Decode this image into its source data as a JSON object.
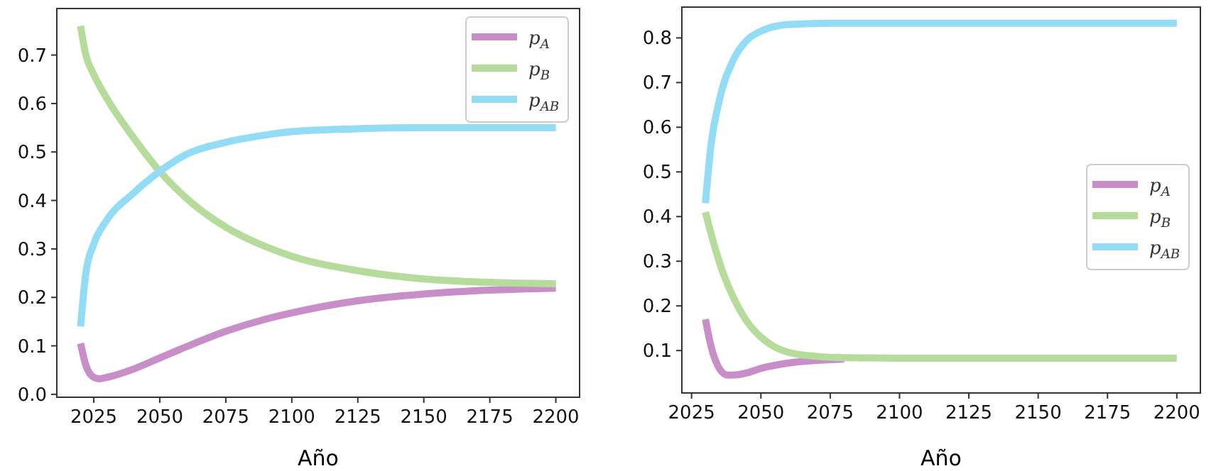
{
  "chart_data": [
    {
      "type": "line",
      "xlabel": "Año",
      "xlim": [
        2011,
        2209
      ],
      "xticks": [
        2025,
        2050,
        2075,
        2100,
        2125,
        2150,
        2175,
        2200
      ],
      "ylim": [
        -0.006,
        0.796
      ],
      "yticks": [
        {
          "value": 0,
          "label": "0.0"
        },
        0.1,
        0.2,
        0.3,
        0.4,
        0.5,
        0.6,
        0.7
      ],
      "grid": false,
      "legend": "top right",
      "line_style": "solid",
      "marker": "none",
      "series": [
        {
          "name": "p$_{A}$",
          "color": "#c88ec8",
          "x": [
            2020,
            2022,
            2025,
            2027,
            2030,
            2040,
            2050,
            2060,
            2075,
            2090,
            2100,
            2125,
            2150,
            2175,
            2200
          ],
          "values": [
            0.105,
            0.06,
            0.035,
            0.032,
            0.035,
            0.052,
            0.075,
            0.098,
            0.13,
            0.155,
            0.168,
            0.193,
            0.207,
            0.215,
            0.219
          ]
        },
        {
          "name": "p$_{B}$",
          "color": "#b5dc9a",
          "x": [
            2020,
            2022,
            2025,
            2030,
            2040,
            2050,
            2060,
            2075,
            2090,
            2100,
            2125,
            2150,
            2175,
            2200
          ],
          "values": [
            0.76,
            0.7,
            0.66,
            0.61,
            0.53,
            0.46,
            0.405,
            0.345,
            0.305,
            0.285,
            0.255,
            0.238,
            0.231,
            0.228
          ]
        },
        {
          "name": "p$_{AB}$",
          "color": "#92dcf5",
          "x": [
            2020,
            2022,
            2025,
            2030,
            2040,
            2050,
            2060,
            2075,
            2090,
            2100,
            2125,
            2150,
            2200
          ],
          "values": [
            0.14,
            0.25,
            0.31,
            0.36,
            0.415,
            0.46,
            0.495,
            0.52,
            0.535,
            0.542,
            0.548,
            0.55,
            0.55
          ]
        }
      ]
    },
    {
      "type": "line",
      "xlabel": "Año",
      "xlim": [
        2021.5,
        2208.5
      ],
      "xticks": [
        2025,
        2050,
        2075,
        2100,
        2125,
        2150,
        2175,
        2200
      ],
      "ylim": [
        0.005,
        0.869
      ],
      "yticks": [
        0.1,
        0.2,
        0.3,
        0.4,
        0.5,
        0.6,
        0.7,
        0.8
      ],
      "grid": false,
      "legend": "right",
      "line_style": "solid",
      "marker": "none",
      "series": [
        {
          "name": "p$_{A}$",
          "color": "#c88ec8",
          "x": [
            2030,
            2032,
            2035,
            2038,
            2040,
            2045,
            2050,
            2060,
            2070,
            2080
          ],
          "values": [
            0.17,
            0.11,
            0.06,
            0.045,
            0.045,
            0.05,
            0.06,
            0.072,
            0.078,
            0.081
          ]
        },
        {
          "name": "p$_{B}$",
          "color": "#b5dc9a",
          "x": [
            2030,
            2033,
            2036,
            2040,
            2045,
            2050,
            2055,
            2060,
            2070,
            2080,
            2100,
            2200
          ],
          "values": [
            0.41,
            0.34,
            0.28,
            0.22,
            0.165,
            0.13,
            0.108,
            0.096,
            0.087,
            0.084,
            0.083,
            0.083
          ]
        },
        {
          "name": "p$_{AB}$",
          "color": "#92dcf5",
          "x": [
            2030,
            2032,
            2035,
            2040,
            2045,
            2050,
            2060,
            2075,
            2200
          ],
          "values": [
            0.43,
            0.56,
            0.66,
            0.75,
            0.795,
            0.815,
            0.83,
            0.833,
            0.833
          ]
        }
      ]
    }
  ]
}
